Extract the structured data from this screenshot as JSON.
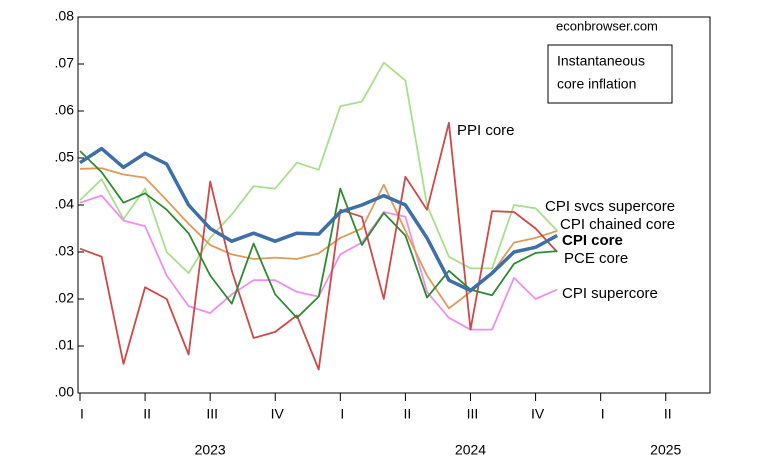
{
  "chart_data": {
    "type": "line",
    "annotations": {
      "source": "econbrowser.com",
      "box": [
        "Instantaneous",
        "core inflation"
      ]
    },
    "x": [
      2023,
      2023.083,
      2023.167,
      2023.25,
      2023.333,
      2023.417,
      2023.5,
      2023.583,
      2023.667,
      2023.75,
      2023.833,
      2023.917,
      2024,
      2024.083,
      2024.167,
      2024.25,
      2024.333,
      2024.417,
      2024.5,
      2024.583,
      2024.667,
      2024.75,
      2024.833
    ],
    "series": [
      {
        "name": "CPI svcs supercore",
        "color": "#a8e08a",
        "values": [
          0.041,
          0.0455,
          0.037,
          0.0435,
          0.03,
          0.0255,
          0.033,
          0.038,
          0.044,
          0.0435,
          0.049,
          0.0475,
          0.061,
          0.062,
          0.0703,
          0.0665,
          0.04,
          0.029,
          0.0265,
          0.0265,
          0.04,
          0.0393,
          0.0345
        ]
      },
      {
        "name": "CPI supercore",
        "color": "#f08ef0",
        "values": [
          0.0405,
          0.042,
          0.0367,
          0.0355,
          0.025,
          0.0185,
          0.017,
          0.021,
          0.024,
          0.024,
          0.0215,
          0.0205,
          0.0295,
          0.032,
          0.0385,
          0.0375,
          0.0215,
          0.016,
          0.0135,
          0.0135,
          0.0245,
          0.02,
          0.022
        ]
      },
      {
        "name": "CPI chained core",
        "color": "#e09a5a",
        "values": [
          0.0477,
          0.0478,
          0.0465,
          0.0458,
          0.041,
          0.036,
          0.0315,
          0.0295,
          0.0285,
          0.0288,
          0.0285,
          0.0297,
          0.033,
          0.035,
          0.0443,
          0.0345,
          0.025,
          0.018,
          0.0215,
          0.0255,
          0.032,
          0.033,
          0.0345
        ]
      },
      {
        "name": "PPI core",
        "color": "#d04848",
        "values": [
          0.0307,
          0.029,
          0.0062,
          0.0225,
          0.02,
          0.0082,
          0.045,
          0.026,
          0.0117,
          0.013,
          0.0165,
          0.005,
          0.039,
          0.0375,
          0.02,
          0.046,
          0.039,
          0.0575,
          0.0135,
          0.0387,
          0.0385,
          0.035,
          0.03
        ]
      },
      {
        "name": "PCE core",
        "color": "#2e8b2e",
        "values": [
          0.0515,
          0.047,
          0.0405,
          0.0425,
          0.039,
          0.034,
          0.025,
          0.019,
          0.0318,
          0.021,
          0.016,
          0.0205,
          0.0435,
          0.0315,
          0.0383,
          0.0335,
          0.0203,
          0.026,
          0.022,
          0.0208,
          0.0275,
          0.0298,
          0.0302
        ]
      },
      {
        "name": "CPI core",
        "color": "#3d6fa8",
        "values": [
          0.049,
          0.052,
          0.048,
          0.051,
          0.0487,
          0.04,
          0.035,
          0.0323,
          0.034,
          0.0323,
          0.034,
          0.0338,
          0.0385,
          0.04,
          0.042,
          0.04,
          0.033,
          0.024,
          0.0218,
          0.0255,
          0.03,
          0.031,
          0.0335
        ]
      }
    ],
    "xlim": [
      2023,
      2025.42
    ],
    "xticks": [
      {
        "value": 2023,
        "label": "I"
      },
      {
        "value": 2023.25,
        "label": "II"
      },
      {
        "value": 2023.5,
        "label": "III"
      },
      {
        "value": 2023.75,
        "label": "IV"
      },
      {
        "value": 2024,
        "label": "I"
      },
      {
        "value": 2024.25,
        "label": "II"
      },
      {
        "value": 2024.5,
        "label": "III"
      },
      {
        "value": 2024.75,
        "label": "IV"
      },
      {
        "value": 2025,
        "label": "I"
      },
      {
        "value": 2025.25,
        "label": "II"
      }
    ],
    "year_labels": [
      {
        "value": 2023.5,
        "label": "2023"
      },
      {
        "value": 2024.5,
        "label": "2024"
      },
      {
        "value": 2025.25,
        "label": "2025"
      }
    ],
    "ylim": [
      0,
      0.08
    ],
    "yticks": [
      {
        "value": 0,
        "label": ".00"
      },
      {
        "value": 0.01,
        "label": ".01"
      },
      {
        "value": 0.02,
        "label": ".02"
      },
      {
        "value": 0.03,
        "label": ".03"
      },
      {
        "value": 0.04,
        "label": ".04"
      },
      {
        "value": 0.05,
        "label": ".05"
      },
      {
        "value": 0.06,
        "label": ".06"
      },
      {
        "value": 0.07,
        "label": ".07"
      },
      {
        "value": 0.08,
        "label": ".08"
      }
    ]
  }
}
